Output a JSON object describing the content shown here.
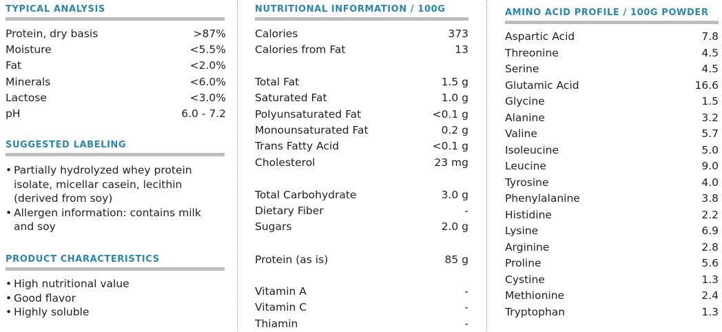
{
  "typical_analysis": {
    "heading": "TYPICAL ANALYSIS",
    "rows": [
      {
        "label": "Protein, dry basis",
        "value": ">87%"
      },
      {
        "label": "Moisture",
        "value": "<5.5%"
      },
      {
        "label": "Fat",
        "value": "<2.0%"
      },
      {
        "label": "Minerals",
        "value": "<6.0%"
      },
      {
        "label": "Lactose",
        "value": "<3.0%"
      },
      {
        "label": "pH",
        "value": "6.0 - 7.2"
      }
    ]
  },
  "suggested_labeling": {
    "heading": "SUGGESTED LABELING",
    "bullet": "•",
    "items": [
      "Partially hydrolyzed whey protein isolate, micellar casein, lecithin (derived from soy)",
      "Allergen information: contains milk and soy"
    ]
  },
  "product_characteristics": {
    "heading": "PRODUCT CHARACTERISTICS",
    "bullet": "•",
    "items": [
      "High nutritional value",
      "Good flavor",
      "Highly soluble"
    ]
  },
  "nutritional_information": {
    "heading": "NUTRITIONAL INFORMATION / 100G",
    "rows": [
      {
        "label": "Calories",
        "value": "373"
      },
      {
        "label": "Calories from Fat",
        "value": "13"
      },
      {
        "label": "Total Fat",
        "value": "1.5 g"
      },
      {
        "label": "Saturated Fat",
        "value": "1.0 g"
      },
      {
        "label": "Polyunsaturated Fat",
        "value": "<0.1 g"
      },
      {
        "label": "Monounsaturated Fat",
        "value": "0.2 g"
      },
      {
        "label": "Trans Fatty Acid",
        "value": "<0.1 g"
      },
      {
        "label": "Cholesterol",
        "value": "23 mg"
      },
      {
        "label": "Total Carbohydrate",
        "value": "3.0 g"
      },
      {
        "label": "Dietary Fiber",
        "value": "-"
      },
      {
        "label": "Sugars",
        "value": "2.0 g"
      },
      {
        "label": "Protein (as is)",
        "value": "85 g"
      },
      {
        "label": "Vitamin A",
        "value": "-"
      },
      {
        "label": "Vitamin C",
        "value": "-"
      },
      {
        "label": "Thiamin",
        "value": "-"
      }
    ]
  },
  "amino_acid_profile": {
    "heading": "AMINO ACID PROFILE / 100G POWDER",
    "rows": [
      {
        "label": "Aspartic Acid",
        "value": "7.8"
      },
      {
        "label": "Threonine",
        "value": "4.5"
      },
      {
        "label": "Serine",
        "value": "4.5"
      },
      {
        "label": "Glutamic Acid",
        "value": "16.6"
      },
      {
        "label": "Glycine",
        "value": "1.5"
      },
      {
        "label": "Alanine",
        "value": "3.2"
      },
      {
        "label": "Valine",
        "value": "5.7"
      },
      {
        "label": "Isoleucine",
        "value": "5.0"
      },
      {
        "label": "Leucine",
        "value": "9.0"
      },
      {
        "label": "Tyrosine",
        "value": "4.0"
      },
      {
        "label": "Phenylalanine",
        "value": "3.8"
      },
      {
        "label": "Histidine",
        "value": "2.2"
      },
      {
        "label": "Lysine",
        "value": "6.9"
      },
      {
        "label": "Arginine",
        "value": "2.8"
      },
      {
        "label": "Proline",
        "value": "5.6"
      },
      {
        "label": "Cystine",
        "value": "1.3"
      },
      {
        "label": "Methionine",
        "value": "2.4"
      },
      {
        "label": "Tryptophan",
        "value": "1.3"
      }
    ]
  },
  "colors": {
    "heading": "#2a86b2",
    "rule": "#bdbdbd",
    "text": "#1f1f1f"
  }
}
